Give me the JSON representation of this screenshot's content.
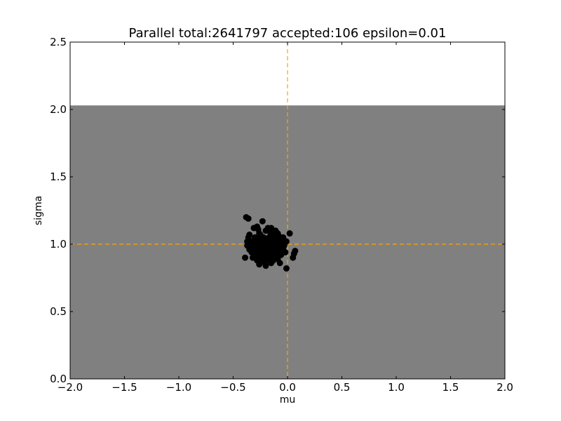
{
  "chart_data": {
    "type": "scatter",
    "title": "Parallel total:2641797 accepted:106 epsilon=0.01",
    "xlabel": "mu",
    "ylabel": "sigma",
    "xlim": [
      -2.0,
      2.0
    ],
    "ylim": [
      0.0,
      2.5
    ],
    "x_ticks": [
      -2.0,
      -1.5,
      -1.0,
      -0.5,
      0.0,
      0.5,
      1.0,
      1.5,
      2.0
    ],
    "y_ticks": [
      0.0,
      0.5,
      1.0,
      1.5,
      2.0,
      2.5
    ],
    "x_tick_labels": [
      "−2.0",
      "−1.5",
      "−1.0",
      "−0.5",
      "0.0",
      "0.5",
      "1.0",
      "1.5",
      "2.0"
    ],
    "y_tick_labels": [
      "0.0",
      "0.5",
      "1.0",
      "1.5",
      "2.0",
      "2.5"
    ],
    "grid": false,
    "prior_region": {
      "x": [
        -2.0,
        2.0
      ],
      "y": [
        0.0,
        2.03
      ],
      "color": "#808080"
    },
    "reference_lines": {
      "vertical_x": 0.0,
      "horizontal_y": 1.0,
      "color": "#FFA500",
      "style": "dashed"
    },
    "marker_color": "#000000",
    "points": [
      [
        -0.38,
        1.2
      ],
      [
        -0.36,
        1.19
      ],
      [
        -0.23,
        1.17
      ],
      [
        -0.28,
        1.13
      ],
      [
        -0.31,
        1.12
      ],
      [
        -0.27,
        1.11
      ],
      [
        -0.18,
        1.12
      ],
      [
        -0.15,
        1.12
      ],
      [
        -0.2,
        1.1
      ],
      [
        -0.16,
        1.09
      ],
      [
        -0.11,
        1.1
      ],
      [
        -0.09,
        1.08
      ],
      [
        0.02,
        1.08
      ],
      [
        -0.35,
        1.07
      ],
      [
        -0.25,
        1.07
      ],
      [
        -0.13,
        1.07
      ],
      [
        -0.08,
        1.06
      ],
      [
        -0.36,
        1.05
      ],
      [
        -0.3,
        1.05
      ],
      [
        -0.22,
        1.05
      ],
      [
        -0.17,
        1.05
      ],
      [
        -0.04,
        1.05
      ],
      [
        -0.27,
        1.04
      ],
      [
        -0.19,
        1.04
      ],
      [
        -0.12,
        1.04
      ],
      [
        -0.09,
        1.03
      ],
      [
        -0.37,
        1.02
      ],
      [
        -0.33,
        1.02
      ],
      [
        -0.24,
        1.02
      ],
      [
        -0.14,
        1.02
      ],
      [
        -0.01,
        1.02
      ],
      [
        -0.29,
        1.01
      ],
      [
        -0.2,
        1.01
      ],
      [
        -0.11,
        1.01
      ],
      [
        -0.06,
        1.01
      ],
      [
        -0.34,
        1.0
      ],
      [
        -0.26,
        1.0
      ],
      [
        -0.17,
        1.0
      ],
      [
        -0.08,
        1.0
      ],
      [
        -0.37,
        0.99
      ],
      [
        -0.22,
        0.99
      ],
      [
        -0.13,
        0.99
      ],
      [
        -0.03,
        0.99
      ],
      [
        -0.3,
        0.98
      ],
      [
        -0.19,
        0.98
      ],
      [
        -0.1,
        0.98
      ],
      [
        -0.27,
        0.97
      ],
      [
        -0.15,
        0.97
      ],
      [
        -0.05,
        0.97
      ],
      [
        -0.35,
        0.96
      ],
      [
        -0.24,
        0.96
      ],
      [
        -0.12,
        0.96
      ],
      [
        -0.08,
        0.96
      ],
      [
        -0.29,
        0.95
      ],
      [
        -0.2,
        0.95
      ],
      [
        -0.16,
        0.95
      ],
      [
        0.07,
        0.95
      ],
      [
        -0.33,
        0.94
      ],
      [
        -0.26,
        0.94
      ],
      [
        -0.1,
        0.94
      ],
      [
        -0.02,
        0.94
      ],
      [
        0.06,
        0.93
      ],
      [
        -0.22,
        0.93
      ],
      [
        -0.14,
        0.93
      ],
      [
        -0.3,
        0.92
      ],
      [
        -0.18,
        0.92
      ],
      [
        -0.06,
        0.92
      ],
      [
        -0.27,
        0.91
      ],
      [
        -0.12,
        0.91
      ],
      [
        -0.39,
        0.9
      ],
      [
        -0.32,
        0.9
      ],
      [
        -0.21,
        0.9
      ],
      [
        0.05,
        0.9
      ],
      [
        -0.25,
        0.89
      ],
      [
        -0.16,
        0.89
      ],
      [
        -0.09,
        0.89
      ],
      [
        -0.19,
        0.88
      ],
      [
        -0.13,
        0.88
      ],
      [
        -0.23,
        0.87
      ],
      [
        -0.15,
        0.86
      ],
      [
        -0.07,
        0.86
      ],
      [
        -0.26,
        0.85
      ],
      [
        -0.2,
        0.84
      ],
      [
        -0.01,
        0.82
      ],
      [
        -0.28,
        0.97
      ],
      [
        -0.23,
        0.97
      ],
      [
        -0.18,
        0.96
      ],
      [
        -0.11,
        0.97
      ],
      [
        -0.04,
        0.96
      ],
      [
        -0.25,
        0.99
      ],
      [
        -0.15,
        1.01
      ],
      [
        -0.07,
        0.99
      ],
      [
        -0.31,
        0.96
      ],
      [
        -0.21,
        0.93
      ],
      [
        -0.09,
        0.92
      ],
      [
        -0.17,
        0.9
      ],
      [
        -0.28,
        0.88
      ],
      [
        -0.12,
        0.95
      ],
      [
        -0.2,
        1.03
      ],
      [
        -0.1,
        1.05
      ],
      [
        -0.26,
        1.08
      ],
      [
        -0.32,
        0.98
      ],
      [
        -0.14,
        0.98
      ],
      [
        -0.06,
        1.03
      ],
      [
        -0.24,
        0.91
      ],
      [
        -0.16,
        0.98
      ]
    ]
  }
}
